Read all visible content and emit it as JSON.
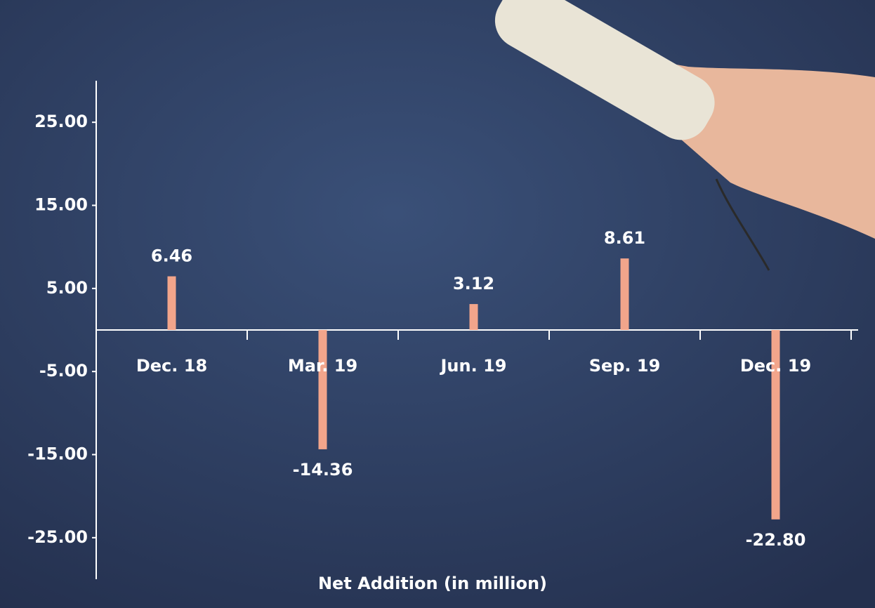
{
  "chart_data": {
    "type": "bar",
    "x_label": "Net Addition (in million)",
    "categories": [
      "Dec. 18",
      "Mar. 19",
      "Jun. 19",
      "Sep. 19",
      "Dec. 19"
    ],
    "values": [
      6.46,
      -14.36,
      3.12,
      8.61,
      -22.8
    ],
    "value_labels": [
      "6.46",
      "-14.36",
      "3.12",
      "8.61",
      "-22.80"
    ],
    "color": "#f2a58b",
    "ylim": [
      -30,
      30
    ],
    "yticks": [
      {
        "value": 25,
        "label": "25.00"
      },
      {
        "value": 15,
        "label": "15.00"
      },
      {
        "value": 5,
        "label": "5.00"
      },
      {
        "value": -5,
        "label": "-5.00"
      },
      {
        "value": -15,
        "label": "-15.00"
      },
      {
        "value": -25,
        "label": "-25.00"
      }
    ],
    "grid": false
  }
}
